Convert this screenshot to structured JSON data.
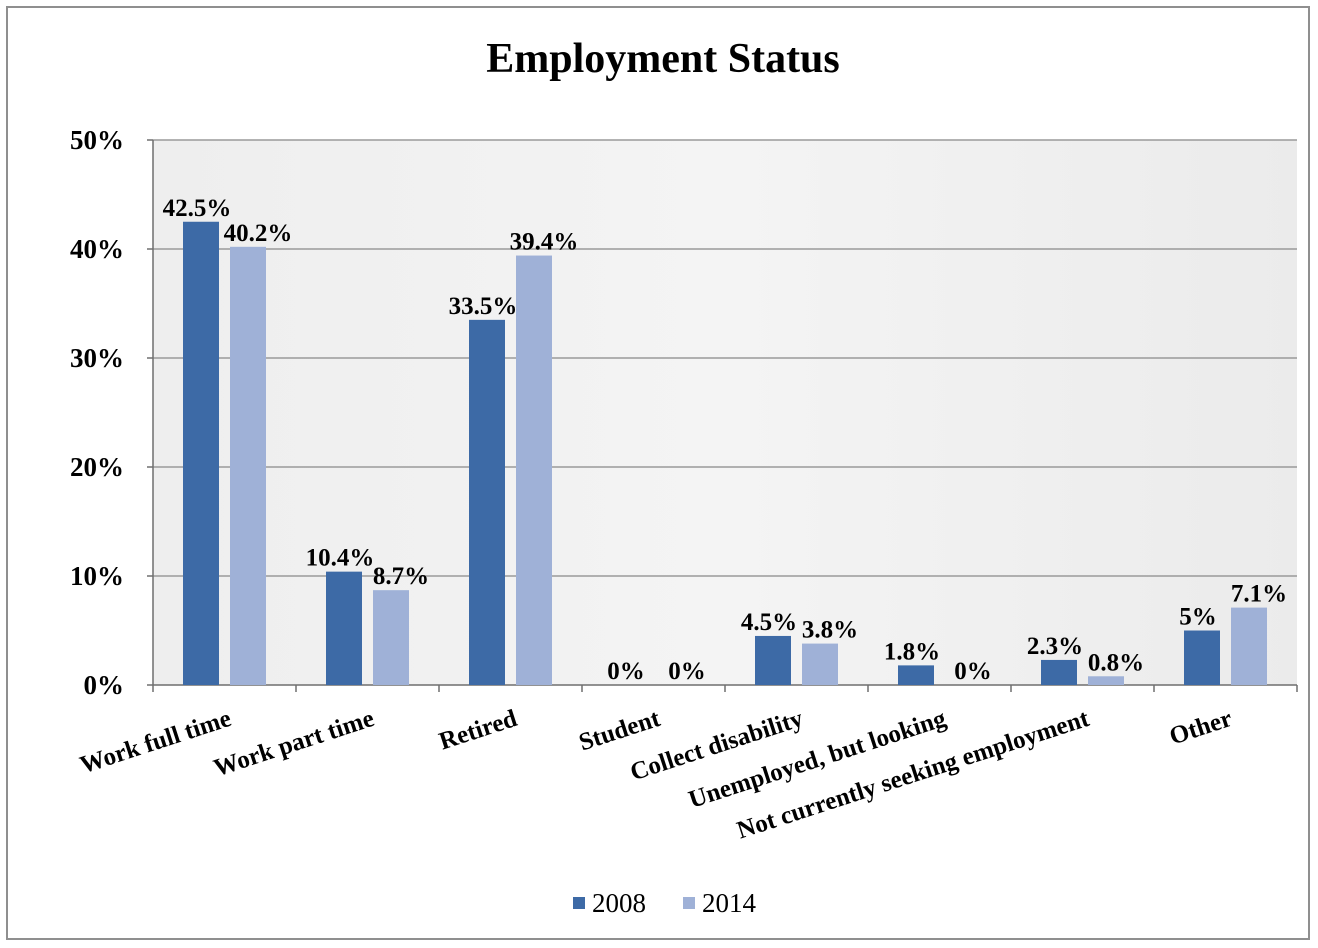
{
  "chart_data": {
    "type": "bar",
    "title": "Employment Status",
    "xlabel": "",
    "ylabel": "",
    "ylim": [
      0,
      50
    ],
    "y_ticks": [
      "0%",
      "10%",
      "20%",
      "30%",
      "40%",
      "50%"
    ],
    "y_tick_values": [
      0,
      10,
      20,
      30,
      40,
      50
    ],
    "grid": true,
    "legend_position": "bottom",
    "categories": [
      "Work full time",
      "Work part time",
      "Retired",
      "Student",
      "Collect disability",
      "Unemployed, but looking",
      "Not currently seeking employment",
      "Other"
    ],
    "series": [
      {
        "name": "2008",
        "color": "#3d6aa6",
        "values": [
          42.5,
          10.4,
          33.5,
          0,
          4.5,
          1.8,
          2.3,
          5
        ],
        "labels": [
          "42.5%",
          "10.4%",
          "33.5%",
          "0%",
          "4.5%",
          "1.8%",
          "2.3%",
          "5%"
        ]
      },
      {
        "name": "2014",
        "color": "#9fb1d7",
        "values": [
          40.2,
          8.7,
          39.4,
          0,
          3.8,
          0,
          0.8,
          7.1
        ],
        "labels": [
          "40.2%",
          "8.7%",
          "39.4%",
          "0%",
          "3.8%",
          "0%",
          "0.8%",
          "7.1%"
        ]
      }
    ],
    "colors": {
      "plot_background": "#eeeeee",
      "gridline": "#9a9a9a",
      "axis": "#6f6f6f"
    }
  }
}
